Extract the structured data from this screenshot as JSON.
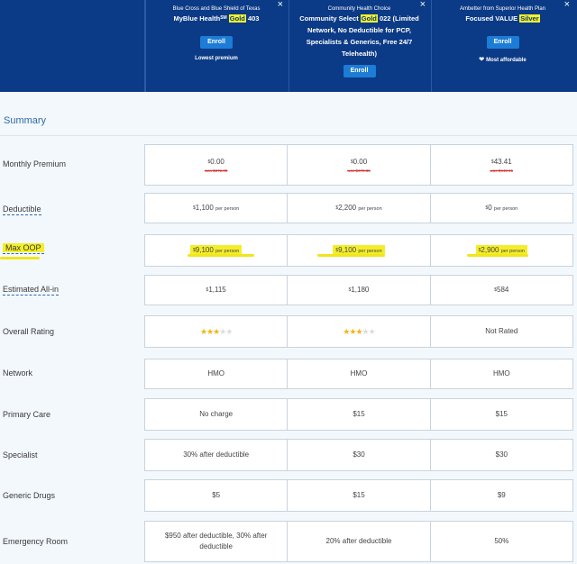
{
  "plans": [
    {
      "issuer": "Blue Cross and Blue Shield of Texas",
      "name_pre": "MyBlue Health",
      "name_sm": "SM",
      "name_hl": "Gold",
      "name_post": " 403",
      "enroll": "Enroll",
      "tag": "Lowest premium"
    },
    {
      "issuer": "Community Health Choice",
      "name_pre": "Community Select ",
      "name_hl": "Gold",
      "name_post": " 022 (Limited Network, No Deductible for PCP, Specialists & Generics, Free 24/7 Telehealth)",
      "enroll": "Enroll"
    },
    {
      "issuer": "Ambetter from Superior Health Plan",
      "name_pre": "Focused VALUE ",
      "name_hl": "Silver",
      "enroll": "Enroll",
      "tag": "Most affordable"
    }
  ],
  "close_glyph": "×",
  "summary_title": "Summary",
  "premium": {
    "label": "Monthly Premium",
    "values": [
      {
        "sup": "$",
        "amount": "0.00",
        "was": "was $372.35"
      },
      {
        "sup": "$",
        "amount": "0.00",
        "was": "was $373.35"
      },
      {
        "sup": "$",
        "amount": "43.41",
        "was": "was $443.41"
      }
    ]
  },
  "deductible": {
    "label": "Deductible",
    "values": [
      {
        "sup": "$",
        "amount": "1,100",
        "unit": "per person"
      },
      {
        "sup": "$",
        "amount": "2,200",
        "unit": "per person"
      },
      {
        "sup": "$",
        "amount": "0",
        "unit": "per person"
      }
    ]
  },
  "max_oop": {
    "label": "Max OOP",
    "values": [
      {
        "sup": "$",
        "amount": "9,100",
        "unit": "per person"
      },
      {
        "sup": "$",
        "amount": "9,100",
        "unit": "per person"
      },
      {
        "sup": "$",
        "amount": "2,900",
        "unit": "per person"
      }
    ]
  },
  "estimated": {
    "label": "Estimated All-in",
    "values": [
      {
        "sup": "$",
        "amount": "1,115"
      },
      {
        "sup": "$",
        "amount": "1,180"
      },
      {
        "sup": "$",
        "amount": "584"
      }
    ]
  },
  "rating": {
    "label": "Overall Rating",
    "stars": [
      3,
      3
    ],
    "max_stars": 5,
    "not_rated": "Not Rated"
  },
  "network": {
    "label": "Network",
    "values": [
      "HMO",
      "HMO",
      "HMO"
    ]
  },
  "primary_care": {
    "label": "Primary Care",
    "values": [
      "No charge",
      "$15",
      "$15"
    ]
  },
  "specialist": {
    "label": "Specialist",
    "values": [
      "30% after deductible",
      "$30",
      "$30"
    ]
  },
  "generic_drugs": {
    "label": "Generic Drugs",
    "values": [
      "$5",
      "$15",
      "$9"
    ]
  },
  "emergency_room": {
    "label": "Emergency Room",
    "values": [
      "$950 after deductible, 30% after deductible",
      "20% after deductible",
      "50%"
    ]
  },
  "colors": {
    "header_bg": "#0b3a86",
    "enroll": "#1d7cd6",
    "highlight": "#f4ee2a",
    "star": "#f1b51c",
    "accent": "#2e6aa8"
  }
}
